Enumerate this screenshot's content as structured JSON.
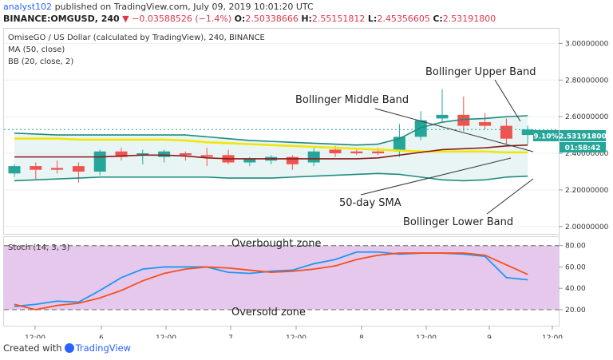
{
  "header": {
    "user": "analyst102",
    "published_text": "published on TradingView.com, July 09, 2019 10:01:20 UTC"
  },
  "ohlc": {
    "symbol": "BINANCE:OMGUSD, 240",
    "change": "▼ −0.03588526 (−1.4%)",
    "o_label": "O:",
    "o_value": "2.50338666",
    "h_label": "H:",
    "h_value": "2.55151812",
    "l_label": "L:",
    "l_value": "2.45356605",
    "c_label": "C:",
    "c_value": "2.53191800"
  },
  "legend": {
    "title": "OmiseGO / US Dollar (calculated by TradingView), 240, BINANCE",
    "ma": "MA (50, close)",
    "bb": "BB (20, close, 2)",
    "stoch": "Stoch (14, 3, 3)"
  },
  "badges": {
    "pct": "9.10%",
    "price": "2.53191800",
    "countdown": "01:58:42"
  },
  "annotations": {
    "upper": "Bollinger Upper Band",
    "middle": "Bollinger Middle Band",
    "sma": "50-day SMA",
    "lower": "Bollinger Lower Band",
    "overbought": "Overbought zone",
    "oversold": "Oversold zone"
  },
  "colors": {
    "up": "#26a69a",
    "down": "#ef5350",
    "bb_band": "#1e8c7e",
    "bb_mid": "#8b1a1a",
    "sma": "#f2e600",
    "stoch_k": "#2196f3",
    "stoch_d": "#f4511e",
    "stoch_fill": "#e1bee7",
    "badge_green": "#26a69a"
  },
  "footer": {
    "created_with": "Created with",
    "brand": "TradingView"
  },
  "chart_data": {
    "type": "candlestick",
    "x_ticks": [
      "12:00",
      "6",
      "12:00",
      "7",
      "12:00",
      "8",
      "12:00",
      "9",
      "12:00"
    ],
    "price_axis": {
      "ticks": [
        "3.00000000",
        "2.80000000",
        "2.60000000",
        "2.40000000",
        "2.20000000",
        "2.00000000"
      ],
      "ylim": [
        1.96,
        3.08
      ]
    },
    "candles": [
      {
        "o": 2.29,
        "h": 2.34,
        "l": 2.27,
        "c": 2.33
      },
      {
        "o": 2.33,
        "h": 2.35,
        "l": 2.26,
        "c": 2.31
      },
      {
        "o": 2.32,
        "h": 2.36,
        "l": 2.29,
        "c": 2.31
      },
      {
        "o": 2.33,
        "h": 2.35,
        "l": 2.24,
        "c": 2.3
      },
      {
        "o": 2.3,
        "h": 2.42,
        "l": 2.28,
        "c": 2.41
      },
      {
        "o": 2.41,
        "h": 2.43,
        "l": 2.36,
        "c": 2.38
      },
      {
        "o": 2.39,
        "h": 2.42,
        "l": 2.34,
        "c": 2.4
      },
      {
        "o": 2.38,
        "h": 2.42,
        "l": 2.35,
        "c": 2.41
      },
      {
        "o": 2.4,
        "h": 2.41,
        "l": 2.36,
        "c": 2.39
      },
      {
        "o": 2.39,
        "h": 2.43,
        "l": 2.33,
        "c": 2.38
      },
      {
        "o": 2.39,
        "h": 2.42,
        "l": 2.34,
        "c": 2.35
      },
      {
        "o": 2.35,
        "h": 2.38,
        "l": 2.33,
        "c": 2.37
      },
      {
        "o": 2.36,
        "h": 2.39,
        "l": 2.34,
        "c": 2.38
      },
      {
        "o": 2.38,
        "h": 2.39,
        "l": 2.31,
        "c": 2.34
      },
      {
        "o": 2.35,
        "h": 2.43,
        "l": 2.33,
        "c": 2.41
      },
      {
        "o": 2.42,
        "h": 2.44,
        "l": 2.38,
        "c": 2.4
      },
      {
        "o": 2.41,
        "h": 2.42,
        "l": 2.39,
        "c": 2.4
      },
      {
        "o": 2.41,
        "h": 2.43,
        "l": 2.39,
        "c": 2.4
      },
      {
        "o": 2.41,
        "h": 2.56,
        "l": 2.38,
        "c": 2.49
      },
      {
        "o": 2.49,
        "h": 2.63,
        "l": 2.47,
        "c": 2.58
      },
      {
        "o": 2.59,
        "h": 2.75,
        "l": 2.57,
        "c": 2.61
      },
      {
        "o": 2.61,
        "h": 2.71,
        "l": 2.52,
        "c": 2.55
      },
      {
        "o": 2.57,
        "h": 2.62,
        "l": 2.53,
        "c": 2.55
      },
      {
        "o": 2.55,
        "h": 2.59,
        "l": 2.45,
        "c": 2.48
      },
      {
        "o": 2.5,
        "h": 2.55,
        "l": 2.45,
        "c": 2.53
      }
    ],
    "sma50": [
      2.48,
      2.48,
      2.48,
      2.475,
      2.475,
      2.475,
      2.475,
      2.475,
      2.47,
      2.46,
      2.455,
      2.45,
      2.445,
      2.44,
      2.435,
      2.43,
      2.425,
      2.42,
      2.415,
      2.41,
      2.41,
      2.41,
      2.41,
      2.405,
      2.405
    ],
    "bb_upper": [
      2.51,
      2.505,
      2.5,
      2.5,
      2.5,
      2.5,
      2.5,
      2.5,
      2.5,
      2.49,
      2.48,
      2.47,
      2.465,
      2.46,
      2.455,
      2.45,
      2.445,
      2.45,
      2.48,
      2.54,
      2.57,
      2.585,
      2.59,
      2.6,
      2.605
    ],
    "bb_mid": [
      2.38,
      2.38,
      2.38,
      2.38,
      2.38,
      2.385,
      2.39,
      2.39,
      2.385,
      2.375,
      2.37,
      2.37,
      2.37,
      2.37,
      2.37,
      2.37,
      2.37,
      2.375,
      2.39,
      2.405,
      2.42,
      2.425,
      2.43,
      2.44,
      2.445
    ],
    "bb_lower": [
      2.25,
      2.255,
      2.26,
      2.265,
      2.27,
      2.27,
      2.27,
      2.27,
      2.27,
      2.27,
      2.265,
      2.265,
      2.265,
      2.27,
      2.275,
      2.28,
      2.285,
      2.29,
      2.285,
      2.27,
      2.255,
      2.25,
      2.255,
      2.27,
      2.275
    ],
    "stochastic": {
      "ylim": [
        5,
        88
      ],
      "ticks": [
        "80.00",
        "60.00",
        "40.00",
        "20.00"
      ],
      "overbought": 80,
      "oversold": 20,
      "k": [
        23,
        25,
        28,
        27,
        38,
        50,
        58,
        60,
        60,
        60,
        55,
        54,
        56,
        57,
        63,
        67,
        74,
        74,
        72,
        73,
        73,
        72,
        70,
        50,
        48
      ],
      "d": [
        25,
        20,
        24,
        26,
        31,
        38,
        47,
        54,
        58,
        60,
        59,
        57,
        55,
        56,
        58,
        61,
        67,
        71,
        73,
        73,
        73,
        73,
        71,
        62,
        53
      ]
    }
  }
}
